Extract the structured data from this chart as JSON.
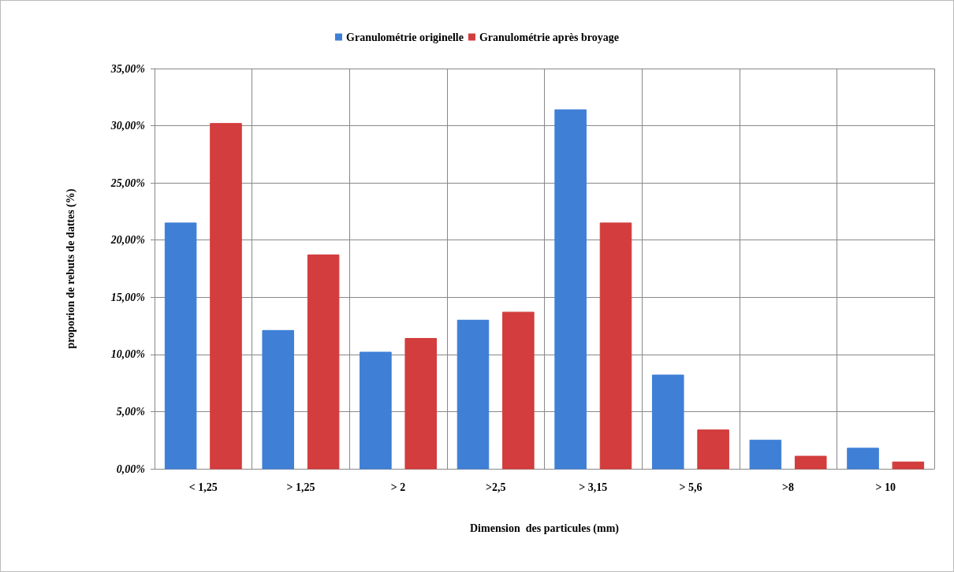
{
  "chart_data": {
    "type": "bar",
    "xlabel": "Dimension  des particules (mm)",
    "ylabel": "proporion de rebuts de dattes (%)",
    "categories": [
      "< 1,25",
      "> 1,25",
      "> 2",
      ">2,5",
      "> 3,15",
      "> 5,6",
      ">8",
      "> 10"
    ],
    "series": [
      {
        "name": "Granulométrie originelle",
        "color": "#3f7fd6",
        "values": [
          21.5,
          12.1,
          10.2,
          13.0,
          31.4,
          8.2,
          2.5,
          1.8
        ]
      },
      {
        "name": "Granulométrie après broyage",
        "color": "#d33d3d",
        "values": [
          30.2,
          18.7,
          11.4,
          13.7,
          21.5,
          3.4,
          1.1,
          0.6
        ]
      }
    ],
    "ylim": [
      0,
      35
    ],
    "yticks": [
      {
        "value": 0,
        "label": "0,00%"
      },
      {
        "value": 5,
        "label": "5,00%"
      },
      {
        "value": 10,
        "label": "10,00%"
      },
      {
        "value": 15,
        "label": "15,00%"
      },
      {
        "value": 20,
        "label": "20,00%"
      },
      {
        "value": 25,
        "label": "25,00%"
      },
      {
        "value": 30,
        "label": "30,00%"
      },
      {
        "value": 35,
        "label": "35,00%"
      }
    ],
    "grid": true,
    "legend": "top"
  }
}
